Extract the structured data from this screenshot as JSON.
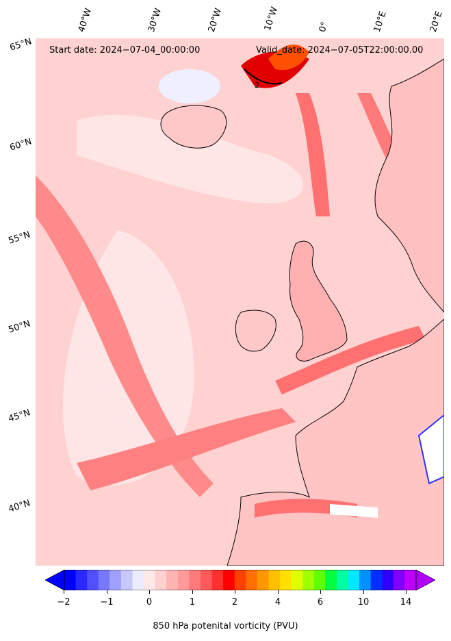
{
  "header": {
    "start_date": "Start date: 2024-07-04_00:00:00",
    "valid_date": "Valid_date: 2024-07-05T22:00:00.00"
  },
  "axes": {
    "lon_labels": [
      "40°W",
      "30°W",
      "20°W",
      "10°W",
      "0°",
      "10°E",
      "20°E"
    ],
    "lat_labels": [
      "65°N",
      "60°N",
      "55°N",
      "50°N",
      "45°N",
      "40°N"
    ]
  },
  "colorbar": {
    "label": "850 hPa potenital vorticity (PVU)",
    "tick_labels": [
      "-2",
      "-1",
      "0",
      "1",
      "2",
      "4",
      "6",
      "10",
      "14"
    ],
    "colors": [
      "#0000ff",
      "#2828ff",
      "#5050ff",
      "#7878ff",
      "#a0a0ff",
      "#c8c8ff",
      "#ececff",
      "#ffe8e8",
      "#ffd0d0",
      "#ffb4b4",
      "#ff9a9a",
      "#ff7a7a",
      "#ff5a5a",
      "#ff3030",
      "#ff0000",
      "#ff4000",
      "#ff7000",
      "#ff9800",
      "#ffc000",
      "#ffe000",
      "#e0ff00",
      "#a0ff00",
      "#60ff00",
      "#00ff40",
      "#00ffa0",
      "#00e8ff",
      "#0090ff",
      "#0030ff",
      "#3000ff",
      "#8000ff",
      "#c000ff"
    ],
    "extend_low_color": "#0000ff",
    "extend_high_color": "#b000ff"
  },
  "map": {
    "projection": "stereographic",
    "extent": "North Atlantic / Western Europe",
    "ocean_field_color": "#ffd2d2",
    "high_pv_color": "#ff6060",
    "max_pv_color": "#e00000",
    "coastline_color": "#000000",
    "contour_value": "2"
  }
}
